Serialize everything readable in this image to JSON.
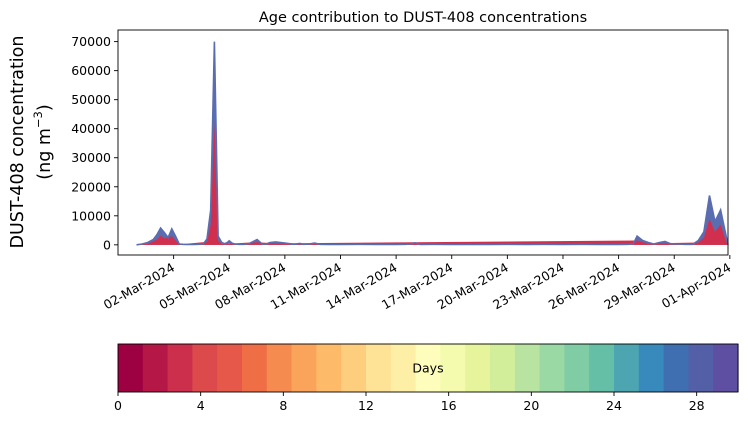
{
  "chart_data": {
    "type": "area",
    "title": "Age contribution to DUST-408 concentrations",
    "ylabel_line1": "DUST-408 concentration",
    "ylabel_line2_prefix": "(ng m",
    "ylabel_line2_sup": "−3",
    "ylabel_line2_suffix": ")",
    "xlabel": "",
    "x_start": "2024-02-29",
    "x_end": "2024-04-01",
    "xlim_days": [
      -1.0,
      31.9
    ],
    "ylim": [
      -3500,
      74000
    ],
    "yticks": [
      0,
      10000,
      20000,
      30000,
      40000,
      50000,
      60000,
      70000
    ],
    "ytick_labels": [
      "0",
      "10000",
      "20000",
      "30000",
      "40000",
      "50000",
      "60000",
      "70000"
    ],
    "xticks_days": [
      2,
      5,
      8,
      11,
      14,
      17,
      20,
      23,
      26,
      29,
      32
    ],
    "xtick_labels": [
      "02-Mar-2024",
      "05-Mar-2024",
      "08-Mar-2024",
      "11-Mar-2024",
      "14-Mar-2024",
      "17-Mar-2024",
      "20-Mar-2024",
      "23-Mar-2024",
      "26-Mar-2024",
      "29-Mar-2024",
      "01-Apr-2024"
    ],
    "series_total": {
      "name": "total",
      "x_days": [
        0,
        0.3,
        0.6,
        0.9,
        1.1,
        1.3,
        1.5,
        1.7,
        1.9,
        2.1,
        2.3,
        2.5,
        2.7,
        2.9,
        3.1,
        3.3,
        3.6,
        3.8,
        4.0,
        4.2,
        4.4,
        4.6,
        4.75,
        4.9,
        5.0,
        5.15,
        5.3,
        5.5,
        5.8,
        6.1,
        6.5,
        6.8,
        7.0,
        7.2,
        7.5,
        8.0,
        8.5,
        8.8,
        9.0,
        9.3,
        9.6,
        9.9,
        10.3,
        11,
        12,
        13,
        14,
        14.5,
        14.8,
        15.0,
        15.3,
        16,
        17,
        18,
        19,
        20,
        21,
        22,
        23,
        24,
        25,
        26,
        26.5,
        26.8,
        27.0,
        27.3,
        27.6,
        27.9,
        28.2,
        28.5,
        28.8,
        29.2,
        29.6,
        30.0,
        30.3,
        30.6,
        30.9,
        31.2,
        31.5,
        31.7,
        31.9
      ],
      "y": [
        0,
        300,
        800,
        1800,
        3500,
        5800,
        4200,
        2500,
        5500,
        3000,
        300,
        200,
        100,
        100,
        150,
        200,
        300,
        2000,
        12000,
        70000,
        3000,
        800,
        400,
        800,
        1400,
        600,
        300,
        200,
        200,
        500,
        1800,
        200,
        300,
        800,
        1000,
        600,
        200,
        500,
        200,
        300,
        600,
        200,
        100,
        100,
        200,
        100,
        100,
        200,
        300,
        700,
        150,
        200,
        100,
        100,
        100,
        200,
        100,
        200,
        100,
        200,
        100,
        100,
        200,
        400,
        3000,
        1500,
        800,
        300,
        800,
        1200,
        400,
        300,
        200,
        200,
        1500,
        4500,
        17000,
        8000,
        12000,
        6000,
        0
      ]
    },
    "series_young": {
      "name": "young",
      "x_days": [
        0,
        0.6,
        1.1,
        1.3,
        1.5,
        1.9,
        2.3,
        3.8,
        4.0,
        4.2,
        4.4,
        4.6,
        6.5,
        7.5,
        27.0,
        27.6,
        28.5,
        30.3,
        30.6,
        30.9,
        31.2,
        31.5,
        31.7,
        31.9
      ],
      "y": [
        0,
        400,
        1800,
        3200,
        2200,
        3000,
        150,
        1000,
        7000,
        42000,
        1500,
        300,
        900,
        500,
        1500,
        400,
        600,
        800,
        2500,
        9000,
        4500,
        7000,
        3000,
        0
      ]
    },
    "colorbar": {
      "label": "Days",
      "min": 0,
      "max": 30,
      "ticks": [
        0,
        4,
        8,
        12,
        16,
        20,
        24,
        28
      ],
      "tick_labels": [
        "0",
        "4",
        "8",
        "12",
        "16",
        "20",
        "24",
        "28"
      ],
      "colors": [
        "#9e0142",
        "#b51847",
        "#cc2f4b",
        "#dc4a4c",
        "#e6594a",
        "#f06e46",
        "#f68b50",
        "#faa35a",
        "#fdbb6a",
        "#fdce7e",
        "#fee296",
        "#feefa6",
        "#fffdbc",
        "#f4faae",
        "#e6f59c",
        "#d3ee9b",
        "#b8e3a0",
        "#9ad8a4",
        "#80cda5",
        "#64bfa6",
        "#4ca5b0",
        "#378abb",
        "#3f6fb1",
        "#5360a8",
        "#5e4fa2"
      ]
    },
    "colors": {
      "outline": "#5a6db0",
      "young_fill": "#d0304e",
      "mid_fill": "#ee6a47"
    },
    "grid": false,
    "legend": "colorbar-bottom"
  }
}
